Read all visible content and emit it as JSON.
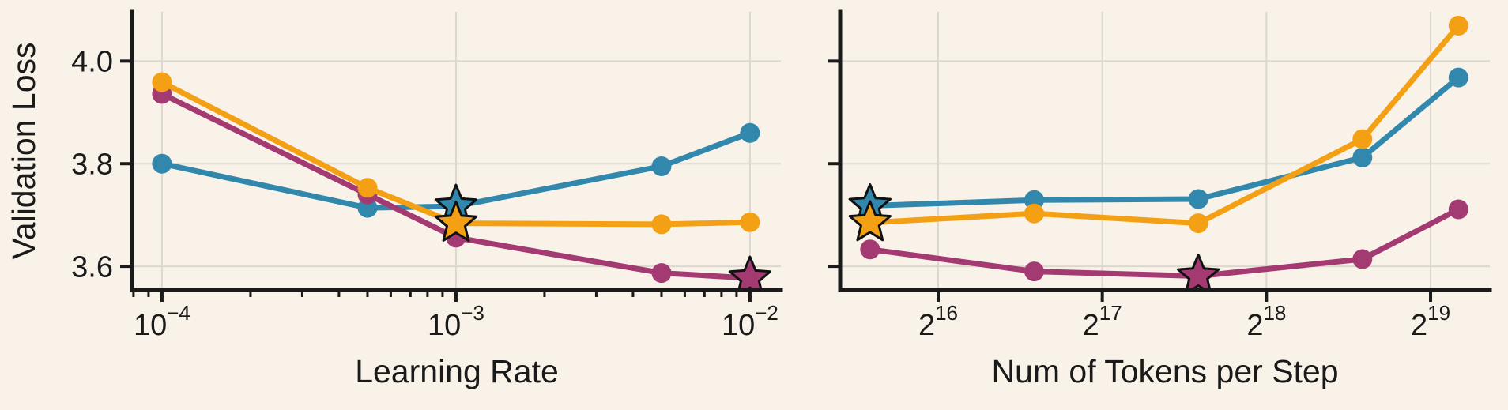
{
  "figure": {
    "background_color": "#F8F2E9",
    "grid_color": "#DCD8CF",
    "axis_color": "#1A1A1A",
    "series_colors": {
      "blue": "#3187AC",
      "magenta": "#A43A72",
      "orange": "#F4A014"
    }
  },
  "chart_data": [
    {
      "type": "line",
      "title": "",
      "xlabel": "Learning Rate",
      "ylabel": "Validation Loss",
      "x_scale": "log10",
      "x_minor_ticks": true,
      "y_tick_labels": true,
      "xlim_log": [
        -4.102,
        -1.895
      ],
      "ylim": [
        3.554,
        4.096
      ],
      "grid": true,
      "legend": "none",
      "x": [
        0.0001,
        0.0005,
        0.001,
        0.005,
        0.01
      ],
      "x_ticks": [
        {
          "v": 0.0001,
          "base": "10",
          "exp": "−4"
        },
        {
          "v": 0.001,
          "base": "10",
          "exp": "−3"
        },
        {
          "v": 0.01,
          "base": "10",
          "exp": "−2"
        }
      ],
      "y_ticks": [
        {
          "v": 3.6,
          "label": "3.6"
        },
        {
          "v": 3.8,
          "label": "3.8"
        },
        {
          "v": 4.0,
          "label": "4.0"
        }
      ],
      "series": [
        {
          "name": "blue",
          "color": "#3187AC",
          "values": [
            3.8,
            3.714,
            3.717,
            3.795,
            3.86
          ],
          "star_index": 2
        },
        {
          "name": "magenta",
          "color": "#A43A72",
          "values": [
            3.936,
            3.74,
            3.656,
            3.587,
            3.577
          ],
          "star_index": 4
        },
        {
          "name": "orange",
          "color": "#F4A014",
          "values": [
            3.959,
            3.753,
            3.684,
            3.682,
            3.686
          ],
          "star_index": 2
        }
      ]
    },
    {
      "type": "line",
      "title": "",
      "xlabel": "Num of Tokens per Step",
      "ylabel": "",
      "x_scale": "log2",
      "x_minor_ticks": false,
      "y_tick_labels": false,
      "xlim_log": [
        15.403,
        19.361
      ],
      "ylim": [
        3.554,
        4.096
      ],
      "grid": true,
      "legend": "none",
      "x": [
        49152,
        98304,
        196608,
        393216,
        589824
      ],
      "x_ticks": [
        {
          "v": 65536,
          "base": "2",
          "exp": "16"
        },
        {
          "v": 131072,
          "base": "2",
          "exp": "17"
        },
        {
          "v": 262144,
          "base": "2",
          "exp": "18"
        },
        {
          "v": 524288,
          "base": "2",
          "exp": "19"
        }
      ],
      "y_ticks": [
        {
          "v": 3.6,
          "label": ""
        },
        {
          "v": 3.8,
          "label": ""
        },
        {
          "v": 4.0,
          "label": ""
        }
      ],
      "series": [
        {
          "name": "blue",
          "color": "#3187AC",
          "values": [
            3.718,
            3.729,
            3.731,
            3.812,
            3.968
          ],
          "star_index": 0
        },
        {
          "name": "magenta",
          "color": "#A43A72",
          "values": [
            3.633,
            3.59,
            3.581,
            3.614,
            3.711
          ],
          "star_index": 2
        },
        {
          "name": "orange",
          "color": "#F4A014",
          "values": [
            3.685,
            3.703,
            3.684,
            3.848,
            4.069
          ],
          "star_index": 0
        }
      ]
    }
  ]
}
